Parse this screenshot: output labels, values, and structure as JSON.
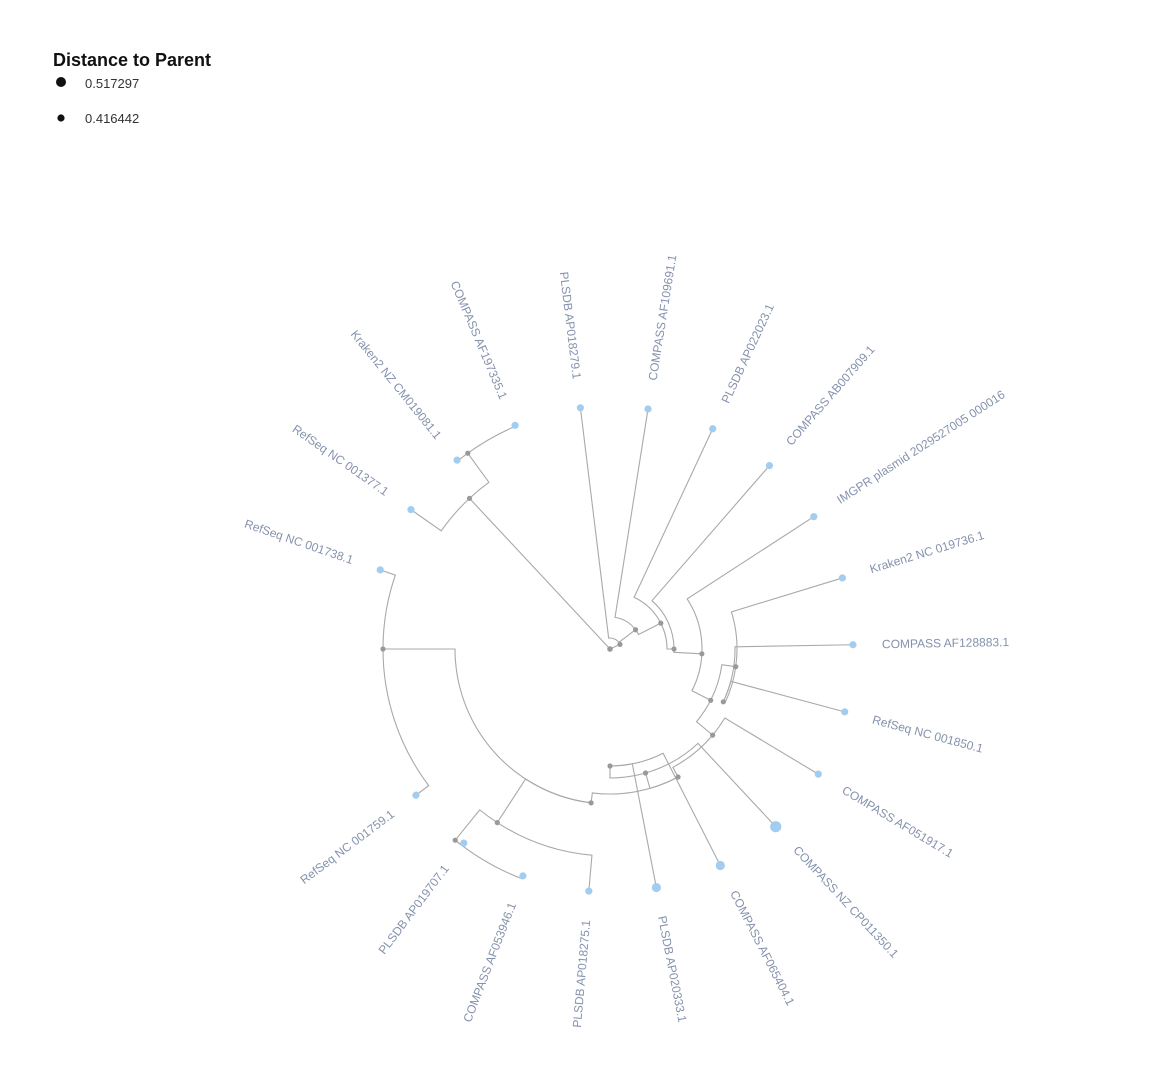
{
  "legend": {
    "title": "Distance to Parent",
    "items": [
      {
        "value": "0.517297",
        "size": "large"
      },
      {
        "value": "0.416442",
        "size": "small"
      }
    ]
  },
  "colors": {
    "leaf": "#a3cdf0",
    "edge": "#a9a9a9",
    "internal_node": "#999999",
    "label": "#8592ad",
    "legend_dot": "#111111"
  },
  "tree": {
    "leaves": [
      {
        "id": "L01",
        "label": "RefSeq NC 001738.1",
        "size": "small"
      },
      {
        "id": "L02",
        "label": "RefSeq NC 001377.1",
        "size": "small"
      },
      {
        "id": "L03",
        "label": "Kraken2 NZ CM019081.1",
        "size": "small"
      },
      {
        "id": "L04",
        "label": "COMPASS AF197335.1",
        "size": "small"
      },
      {
        "id": "L05",
        "label": "PLSDB AP018279.1",
        "size": "small"
      },
      {
        "id": "L06",
        "label": "COMPASS AF109691.1",
        "size": "small"
      },
      {
        "id": "L07",
        "label": "PLSDB AP022023.1",
        "size": "small"
      },
      {
        "id": "L08",
        "label": "COMPASS AB007909.1",
        "size": "small"
      },
      {
        "id": "L09",
        "label": "IMGPR plasmid 2029527005 000016",
        "size": "small"
      },
      {
        "id": "L10",
        "label": "Kraken2 NC 019736.1",
        "size": "small"
      },
      {
        "id": "L11",
        "label": "COMPASS AF128883.1",
        "size": "small"
      },
      {
        "id": "L12",
        "label": "RefSeq NC 001850.1",
        "size": "small"
      },
      {
        "id": "L13",
        "label": "COMPASS AF051917.1",
        "size": "small"
      },
      {
        "id": "L14",
        "label": "COMPASS NZ CP011350.1",
        "size": "large"
      },
      {
        "id": "L15",
        "label": "COMPASS AF065404.1",
        "size": "medium"
      },
      {
        "id": "L16",
        "label": "PLSDB AP020333.1",
        "size": "medium"
      },
      {
        "id": "L17",
        "label": "PLSDB AP018275.1",
        "size": "small"
      },
      {
        "id": "L18",
        "label": "COMPASS AF053946.1",
        "size": "small"
      },
      {
        "id": "L19",
        "label": "PLSDB AP019707.1",
        "size": "small"
      },
      {
        "id": "L20",
        "label": "RefSeq NC 001759.1",
        "size": "small"
      }
    ],
    "internal_nodes": [
      {
        "id": "root",
        "children": [
          "nA",
          "nG"
        ]
      },
      {
        "id": "nA",
        "children": [
          "nB",
          "L05"
        ]
      },
      {
        "id": "nB",
        "children": [
          "nC",
          "L06"
        ]
      },
      {
        "id": "nC",
        "children": [
          "nD",
          "L07"
        ]
      },
      {
        "id": "nD",
        "children": [
          "nE",
          "L08"
        ]
      },
      {
        "id": "nE",
        "children": [
          "nF",
          "L09"
        ]
      },
      {
        "id": "nF",
        "children": [
          "nK",
          "nI"
        ]
      },
      {
        "id": "nK",
        "children": [
          "L10",
          "nJ"
        ]
      },
      {
        "id": "nJ",
        "children": [
          "L11",
          "L12"
        ]
      },
      {
        "id": "nI",
        "children": [
          "L13",
          "nH"
        ]
      },
      {
        "id": "nH",
        "children": [
          "nM",
          "nL"
        ]
      },
      {
        "id": "nM",
        "children": [
          "L14",
          "nN"
        ]
      },
      {
        "id": "nN",
        "children": [
          "L15",
          "L16"
        ]
      },
      {
        "id": "nL",
        "children": [
          "nO",
          "nR"
        ]
      },
      {
        "id": "nO",
        "children": [
          "L17",
          "nP"
        ]
      },
      {
        "id": "nP",
        "children": [
          "L18",
          "L19"
        ]
      },
      {
        "id": "nR",
        "children": [
          "L01",
          "L20"
        ]
      },
      {
        "id": "nG",
        "children": [
          "L02",
          "nQ"
        ]
      },
      {
        "id": "nQ",
        "children": [
          "L03",
          "L04"
        ]
      }
    ]
  }
}
